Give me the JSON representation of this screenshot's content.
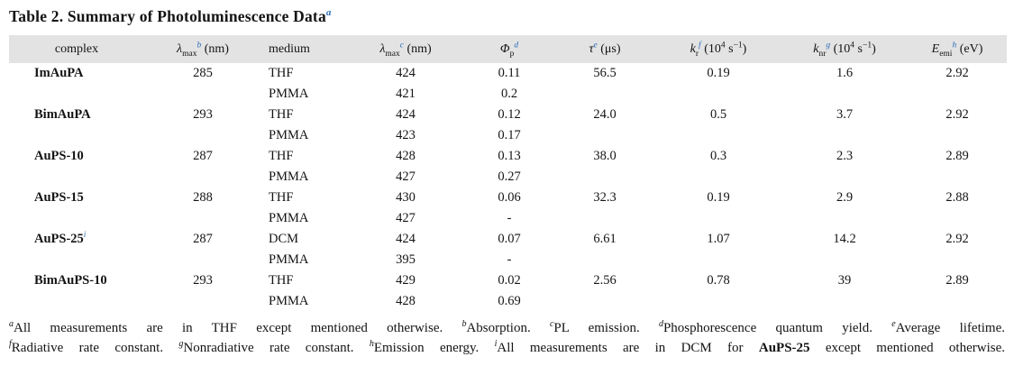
{
  "title": {
    "text": "Table 2. Summary of Photoluminescence Data",
    "marker": "a"
  },
  "colors": {
    "accent_blue": "#2e6db4",
    "header_bg": "#e3e3e3",
    "text": "#141414"
  },
  "table": {
    "headers": [
      {
        "main": "complex"
      },
      {
        "main": "λ",
        "sub": "max",
        "marker": "b",
        "upre": " (nm)"
      },
      {
        "main": "medium"
      },
      {
        "main": "λ",
        "sub": "max",
        "marker": "c",
        "upre": " (nm)"
      },
      {
        "main": "Φ",
        "sub": "p",
        "marker": "d"
      },
      {
        "main": "τ",
        "marker": "e",
        "upre": " (μs)"
      },
      {
        "main": "k",
        "sub": "r",
        "marker": "f",
        "upre": " (10",
        "upow": "4",
        "umid": " s",
        "upow2": "−1",
        "upost": ")"
      },
      {
        "main": "k",
        "sub": "nr",
        "marker": "g",
        "upre": " (10",
        "upow": "4",
        "umid": " s",
        "upow2": "−1",
        "upost": ")"
      },
      {
        "main": "E",
        "sub": "emi",
        "marker": "h",
        "upre": " (eV)"
      }
    ],
    "rows": [
      {
        "complex": "ImAuPA",
        "abs": "285",
        "medium": "THF",
        "em": "424",
        "phi": "0.11",
        "tau": "56.5",
        "kr": "0.19",
        "knr": "1.6",
        "eemi": "2.92"
      },
      {
        "medium": "PMMA",
        "em": "421",
        "phi": "0.2"
      },
      {
        "complex": "BimAuPA",
        "abs": "293",
        "medium": "THF",
        "em": "424",
        "phi": "0.12",
        "tau": "24.0",
        "kr": "0.5",
        "knr": "3.7",
        "eemi": "2.92"
      },
      {
        "medium": "PMMA",
        "em": "423",
        "phi": "0.17"
      },
      {
        "complex": "AuPS-10",
        "abs": "287",
        "medium": "THF",
        "em": "428",
        "phi": "0.13",
        "tau": "38.0",
        "kr": "0.3",
        "knr": "2.3",
        "eemi": "2.89"
      },
      {
        "medium": "PMMA",
        "em": "427",
        "phi": "0.27"
      },
      {
        "complex": "AuPS-15",
        "abs": "288",
        "medium": "THF",
        "em": "430",
        "phi": "0.06",
        "tau": "32.3",
        "kr": "0.19",
        "knr": "2.9",
        "eemi": "2.88"
      },
      {
        "medium": "PMMA",
        "em": "427",
        "phi": "-"
      },
      {
        "complex": "AuPS-25",
        "complex_marker": "i",
        "abs": "287",
        "medium": "DCM",
        "em": "424",
        "phi": "0.07",
        "tau": "6.61",
        "kr": "1.07",
        "knr": "14.2",
        "eemi": "2.92"
      },
      {
        "medium": "PMMA",
        "em": "395",
        "phi": "-"
      },
      {
        "complex": "BimAuPS-10",
        "abs": "293",
        "medium": "THF",
        "em": "429",
        "phi": "0.02",
        "tau": "2.56",
        "kr": "0.78",
        "knr": "39",
        "eemi": "2.89"
      },
      {
        "medium": "PMMA",
        "em": "428",
        "phi": "0.69"
      }
    ]
  },
  "footnotes": {
    "lines": [
      {
        "segments": [
          {
            "marker": "a",
            "text": "All measurements are in THF except mentioned otherwise. "
          },
          {
            "marker": "b",
            "text": "Absorption. "
          },
          {
            "marker": "c",
            "text": "PL emission. "
          },
          {
            "marker": "d",
            "text": "Phosphorescence quantum yield. "
          },
          {
            "marker": "e",
            "text": "Average lifetime."
          }
        ]
      },
      {
        "segments": [
          {
            "marker": "f",
            "text": "Radiative rate constant. "
          },
          {
            "marker": "g",
            "text": "Nonradiative rate constant. "
          },
          {
            "marker": "h",
            "text": "Emission energy. "
          },
          {
            "marker": "i",
            "text": "All measurements are in DCM for "
          },
          {
            "bold": "AuPS-25"
          },
          {
            "text": " except mentioned otherwise."
          }
        ]
      }
    ]
  }
}
